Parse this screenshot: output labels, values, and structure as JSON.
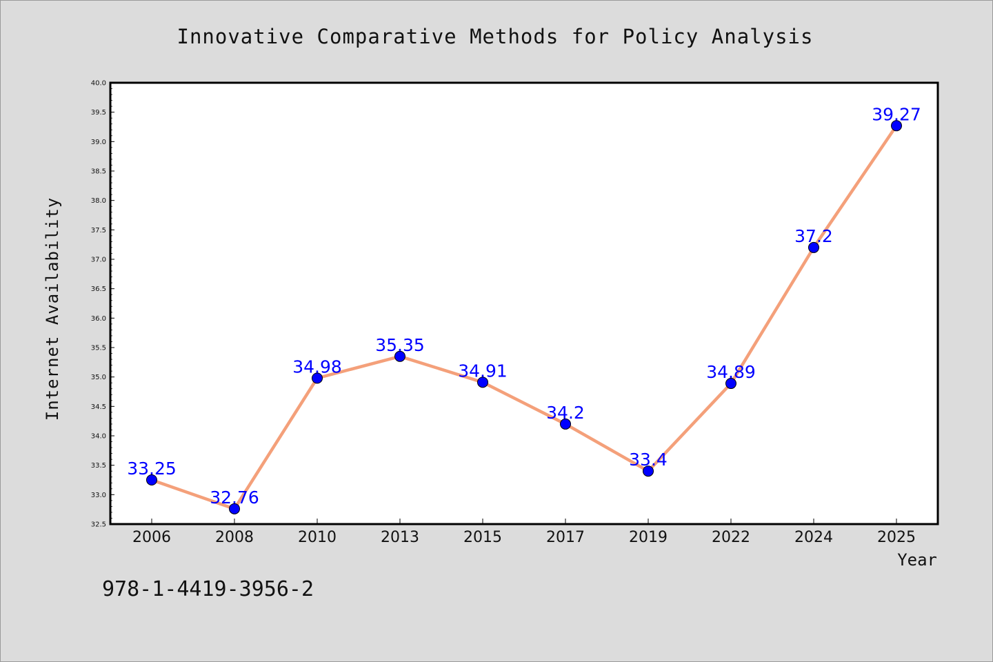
{
  "chart_data": {
    "type": "line",
    "title": "Innovative Comparative Methods for Policy Analysis",
    "xlabel": "Year",
    "ylabel": "Internet Availability",
    "categories": [
      "2006",
      "2008",
      "2010",
      "2013",
      "2015",
      "2017",
      "2019",
      "2022",
      "2024",
      "2025"
    ],
    "series": [
      {
        "values": [
          33.25,
          32.76,
          34.98,
          35.35,
          34.91,
          34.2,
          33.4,
          34.89,
          37.2,
          39.27
        ],
        "data_labels": [
          "33.25",
          "32.76",
          "34.98",
          "35.35",
          "34.91",
          "34.2",
          "33.4",
          "34.89",
          "37.2",
          "39.27"
        ]
      }
    ],
    "ylim": [
      32.5,
      40.0
    ],
    "yticks": [
      "32.5",
      "33.0",
      "33.5",
      "34.0",
      "34.5",
      "35.0",
      "35.5",
      "36.0",
      "36.5",
      "37.0",
      "37.5",
      "38.0",
      "38.5",
      "39.0",
      "39.5",
      "40.0"
    ],
    "grid": false,
    "line_color": "#f4a07a",
    "marker_color": "#0000ff",
    "label_color": "#0000ff",
    "background_color": "#dcdcdc"
  },
  "footer": {
    "isbn": "978-1-4419-3956-2"
  }
}
